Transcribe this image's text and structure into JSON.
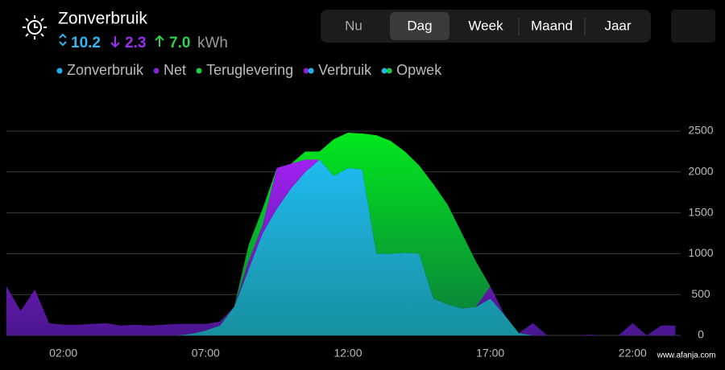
{
  "header": {
    "title": "Zonverbruik",
    "solar_used": "10.2",
    "grid_used": "2.3",
    "returned": "7.0",
    "unit": "kWh"
  },
  "tabs": {
    "items": [
      "Nu",
      "Dag",
      "Week",
      "Maand",
      "Jaar"
    ],
    "active": 1
  },
  "watermark": "www.afanja.com",
  "chart_data": {
    "type": "stacked-area",
    "x": [
      0,
      0.5,
      1,
      1.5,
      2,
      2.5,
      3,
      3.5,
      4,
      4.5,
      5,
      5.5,
      6,
      6.5,
      7,
      7.5,
      8,
      8.5,
      9,
      9.5,
      10,
      10.5,
      11,
      11.5,
      12,
      12.5,
      13,
      13.5,
      14,
      14.5,
      15,
      15.5,
      16,
      16.5,
      17,
      17.5,
      18,
      18.5,
      19,
      19.5,
      20,
      20.5,
      21,
      21.5,
      22,
      22.5,
      23,
      23.5
    ],
    "series": [
      {
        "name": "Zonverbruik",
        "color": "#1fb5e8",
        "values": [
          0,
          0,
          0,
          0,
          0,
          0,
          0,
          0,
          0,
          0,
          0,
          0,
          0,
          20,
          60,
          120,
          350,
          800,
          1250,
          1550,
          1800,
          2000,
          2150,
          1950,
          2050,
          2030,
          1000,
          1000,
          1010,
          1000,
          450,
          380,
          330,
          350,
          450,
          250,
          30,
          0,
          0,
          0,
          0,
          0,
          0,
          0,
          0,
          0,
          0,
          0
        ]
      },
      {
        "name": "Net",
        "color": "#8a22d8",
        "values": [
          600,
          300,
          560,
          150,
          130,
          130,
          140,
          150,
          120,
          130,
          120,
          130,
          140,
          120,
          80,
          50,
          0,
          100,
          100,
          500,
          300,
          150,
          0,
          0,
          0,
          0,
          0,
          0,
          0,
          0,
          0,
          0,
          0,
          0,
          150,
          0,
          0,
          150,
          0,
          0,
          0,
          10,
          0,
          0,
          150,
          0,
          120,
          120
        ]
      },
      {
        "name": "Teruglevering",
        "color": "#22c84a",
        "values": [
          0,
          0,
          0,
          0,
          0,
          0,
          0,
          0,
          0,
          0,
          0,
          0,
          0,
          0,
          0,
          0,
          0,
          200,
          200,
          0,
          0,
          100,
          100,
          450,
          430,
          440,
          1450,
          1380,
          1240,
          1080,
          1400,
          1220,
          920,
          550,
          0,
          0,
          0,
          0,
          0,
          0,
          0,
          0,
          0,
          0,
          0,
          0,
          0,
          0
        ]
      }
    ],
    "legend_combined": [
      {
        "name": "Verbruik",
        "colors": [
          "#8a22d8",
          "#1fb5e8"
        ]
      },
      {
        "name": "Opwek",
        "colors": [
          "#1fb5e8",
          "#22c84a"
        ]
      }
    ],
    "xlim": [
      0,
      24
    ],
    "ylim": [
      0,
      2500
    ],
    "xticks": [
      {
        "value": 2,
        "label": "02:00"
      },
      {
        "value": 7,
        "label": "07:00"
      },
      {
        "value": 12,
        "label": "12:00"
      },
      {
        "value": 17,
        "label": "17:00"
      },
      {
        "value": 22,
        "label": "22:00"
      }
    ],
    "yticks": [
      0,
      500,
      1000,
      1500,
      2000,
      2500
    ],
    "grid": true
  }
}
